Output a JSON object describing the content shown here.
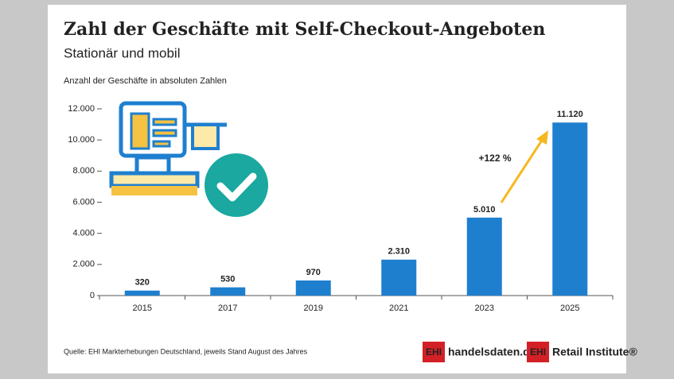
{
  "chart_data": {
    "type": "bar",
    "title": "Zahl der Geschäfte mit Self-Checkout-Angeboten",
    "subtitle": "Stationär und mobil",
    "y_label": "Anzahl der Geschäfte in absoluten Zahlen",
    "categories": [
      "2015",
      "2017",
      "2019",
      "2021",
      "2023",
      "2025"
    ],
    "values": [
      320,
      530,
      970,
      2310,
      5010,
      11120
    ],
    "value_labels": [
      "320",
      "530",
      "970",
      "2.310",
      "5.010",
      "11.120"
    ],
    "color": "#1f7fcf",
    "ylim": [
      0,
      12000
    ],
    "yticks": [
      0,
      {
        "value": 2000,
        "label": "2.000"
      },
      {
        "value": 4000,
        "label": "4.000"
      },
      {
        "value": 6000,
        "label": "6.000"
      },
      {
        "value": 8000,
        "label": "8.000"
      },
      {
        "value": 10000,
        "label": "10.000"
      },
      {
        "value": 12000,
        "label": "12.000"
      }
    ],
    "grid": false,
    "annotation": "+122 %",
    "source": "Quelle: EHI Markterhebungen Deutschland, jeweils Stand August des Jahres",
    "logos": [
      "EHI",
      "handelsdaten.de",
      "EHI",
      "Retail Institute®"
    ]
  }
}
